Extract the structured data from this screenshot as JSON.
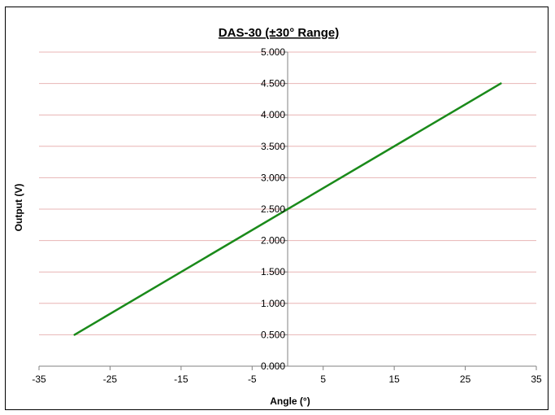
{
  "chart_data": {
    "type": "line",
    "title": "DAS-30 (±30° Range)",
    "xlabel": "Angle (°)",
    "ylabel": "Output (V)",
    "xlim": [
      -35,
      35
    ],
    "ylim": [
      0,
      5
    ],
    "x_ticks": [
      -35,
      -25,
      -15,
      -5,
      5,
      15,
      25,
      35
    ],
    "x_tick_labels": [
      "-35",
      "-25",
      "-15",
      "-5",
      "5",
      "15",
      "25",
      "35"
    ],
    "y_ticks": [
      0,
      0.5,
      1,
      1.5,
      2,
      2.5,
      3,
      3.5,
      4,
      4.5,
      5
    ],
    "y_tick_labels": [
      "0.000",
      "0.500",
      "1.000",
      "1.500",
      "2.000",
      "2.500",
      "3.000",
      "3.500",
      "4.000",
      "4.500",
      "5.000"
    ],
    "grid": true,
    "legend": "none",
    "series": [
      {
        "x": [
          -30,
          30
        ],
        "y": [
          0.5,
          4.5
        ]
      }
    ],
    "colors": {
      "line": "#1a8a1a",
      "gridline": "#e8b4b4",
      "axis": "#808080",
      "frame": "#000000"
    }
  }
}
